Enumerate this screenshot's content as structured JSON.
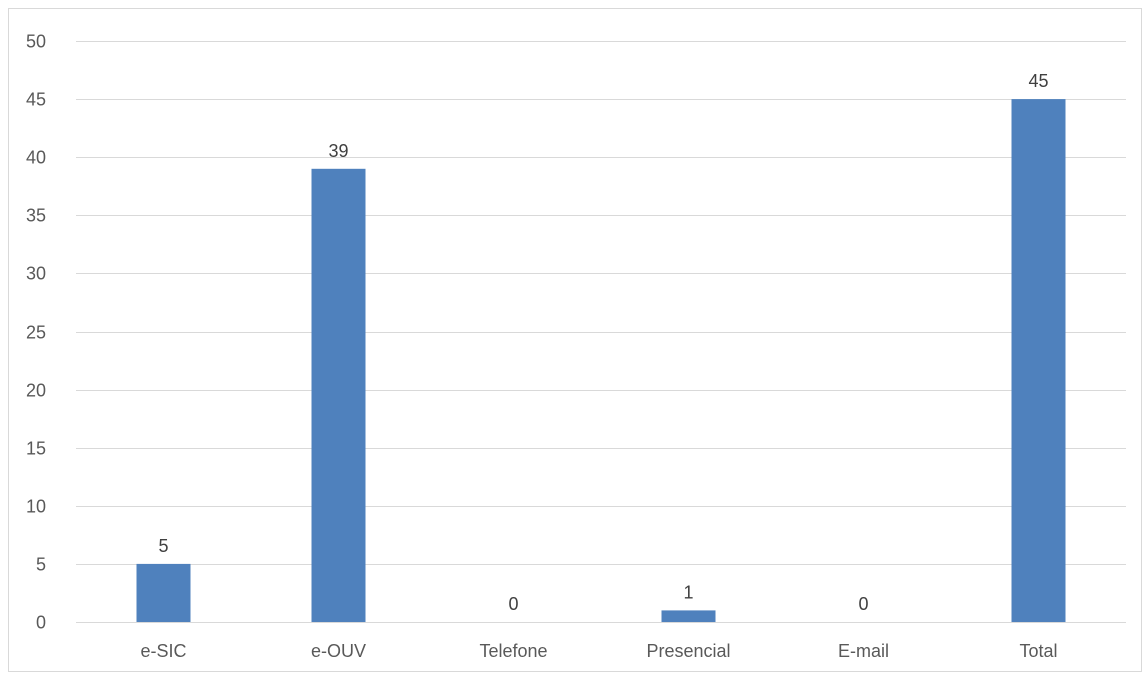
{
  "chart_data": {
    "type": "bar",
    "title": "",
    "xlabel": "",
    "ylabel": "",
    "categories": [
      "e-SIC",
      "e-OUV",
      "Telefone",
      "Presencial",
      "E-mail",
      "Total"
    ],
    "values": [
      5,
      39,
      0,
      1,
      0,
      45
    ],
    "ylim": [
      0,
      50
    ],
    "yticks": [
      0,
      5,
      10,
      15,
      20,
      25,
      30,
      35,
      40,
      45,
      50
    ],
    "data_labels": true,
    "grid": true,
    "legend": "none",
    "bar_color": "#4f81bd",
    "grid_color": "#d9d9d9",
    "text_color": "#595959"
  }
}
